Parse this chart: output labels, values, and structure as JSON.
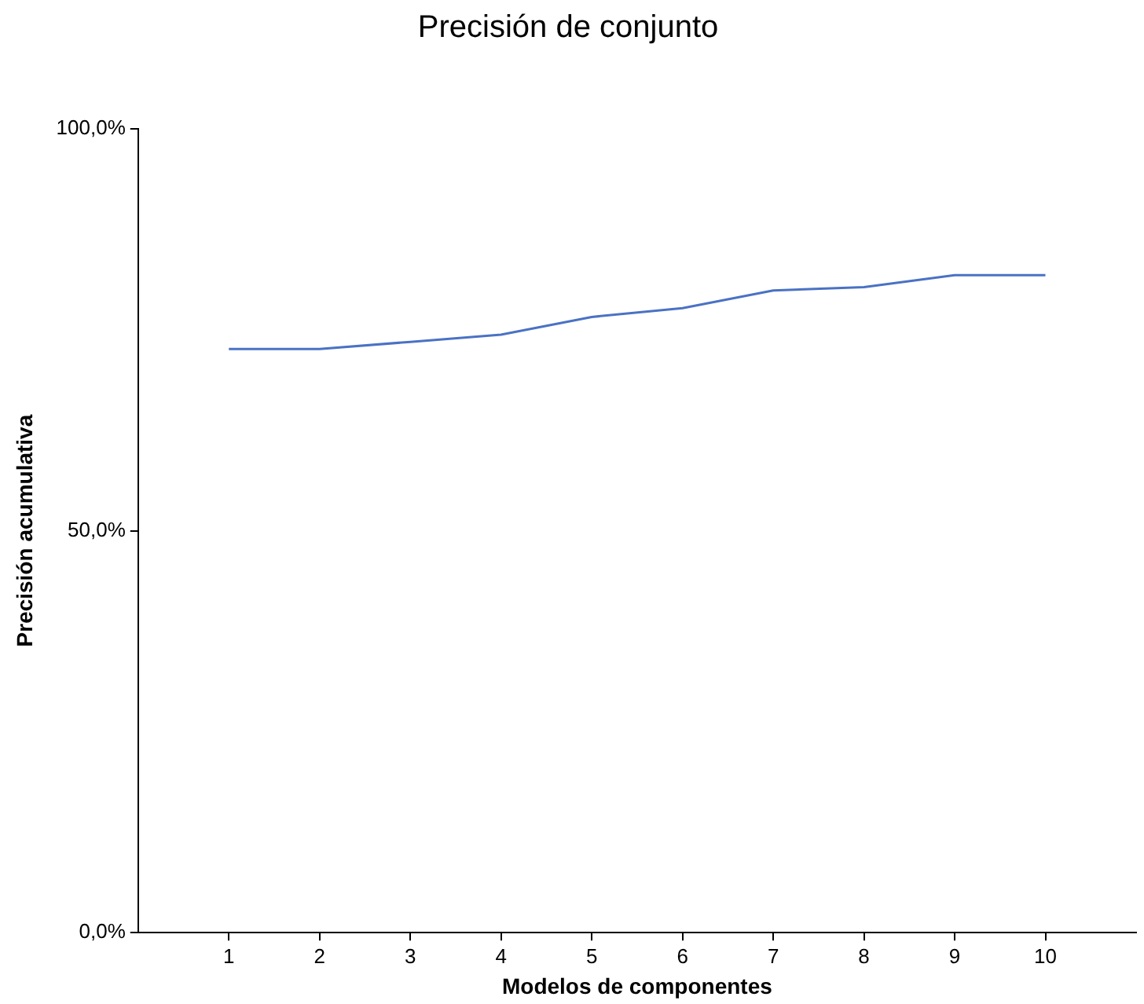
{
  "chart_data": {
    "type": "line",
    "title": "Precisión de conjunto",
    "xlabel": "Modelos de componentes",
    "ylabel": "Precisión acumulativa",
    "x": [
      1,
      2,
      3,
      4,
      5,
      6,
      7,
      8,
      9,
      10
    ],
    "series": [
      {
        "color": "#4a72c4",
        "values": [
          72.6,
          72.6,
          73.5,
          74.4,
          76.6,
          77.7,
          79.9,
          80.3,
          81.8,
          81.8
        ]
      }
    ],
    "xlim": [
      0,
      11
    ],
    "xticks": [
      1,
      2,
      3,
      4,
      5,
      6,
      7,
      8,
      9,
      10
    ],
    "ylim": [
      0,
      100
    ],
    "yticks": [
      {
        "value": 0,
        "label": "0,0%"
      },
      {
        "value": 50,
        "label": "50,0%"
      },
      {
        "value": 100,
        "label": "100,0%"
      }
    ],
    "grid": false,
    "legend": false,
    "marker": "none",
    "line_style": "solid"
  }
}
